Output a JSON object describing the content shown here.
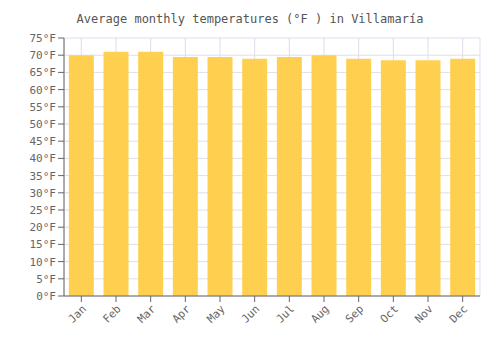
{
  "chart_data": {
    "type": "bar",
    "title": "Average monthly temperatures (°F ) in Villamaría",
    "categories": [
      "Jan",
      "Feb",
      "Mar",
      "Apr",
      "May",
      "Jun",
      "Jul",
      "Aug",
      "Sep",
      "Oct",
      "Nov",
      "Dec"
    ],
    "values": [
      70.0,
      71.0,
      71.0,
      69.5,
      69.5,
      69.0,
      69.5,
      70.0,
      69.0,
      68.5,
      68.5,
      69.0
    ],
    "color": "#FFD050",
    "ylim": [
      0,
      75
    ],
    "yticks": [
      {
        "value": 0,
        "label": "0°F"
      },
      {
        "value": 5,
        "label": "5°F"
      },
      {
        "value": 10,
        "label": "10°F"
      },
      {
        "value": 15,
        "label": "15°F"
      },
      {
        "value": 20,
        "label": "20°F"
      },
      {
        "value": 25,
        "label": "25°F"
      },
      {
        "value": 30,
        "label": "30°F"
      },
      {
        "value": 35,
        "label": "35°F"
      },
      {
        "value": 40,
        "label": "40°F"
      },
      {
        "value": 45,
        "label": "45°F"
      },
      {
        "value": 50,
        "label": "50°F"
      },
      {
        "value": 55,
        "label": "55°F"
      },
      {
        "value": 60,
        "label": "60°F"
      },
      {
        "value": 65,
        "label": "65°F"
      },
      {
        "value": 70,
        "label": "70°F"
      },
      {
        "value": 75,
        "label": "75°F"
      }
    ],
    "grid": true
  }
}
